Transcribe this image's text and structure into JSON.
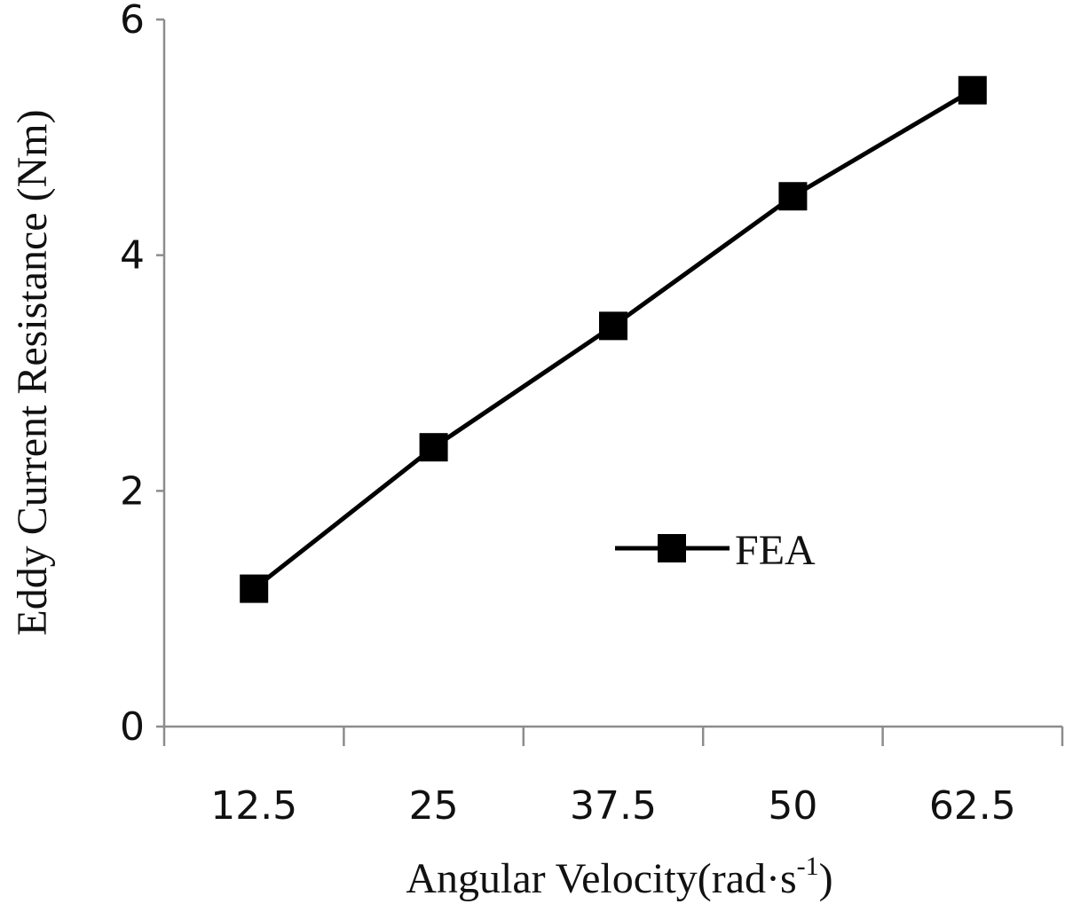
{
  "chart_data": {
    "type": "line",
    "title": "",
    "xlabel": "Angular Velocity(rad·s",
    "xlabel_superscript": "-1",
    "xlabel_suffix": ")",
    "ylabel": "Eddy Current Resistance (Nm)",
    "categories": [
      "12.5",
      "25",
      "37.5",
      "50",
      "62.5"
    ],
    "y_ticks": [
      "0",
      "2",
      "4",
      "6"
    ],
    "ylim": [
      0,
      6
    ],
    "grid": false,
    "legend_position": "right-middle",
    "series": [
      {
        "name": "FEA",
        "values": [
          1.17,
          2.37,
          3.4,
          4.5,
          5.4
        ],
        "color": "#000000",
        "marker": "square"
      }
    ]
  }
}
